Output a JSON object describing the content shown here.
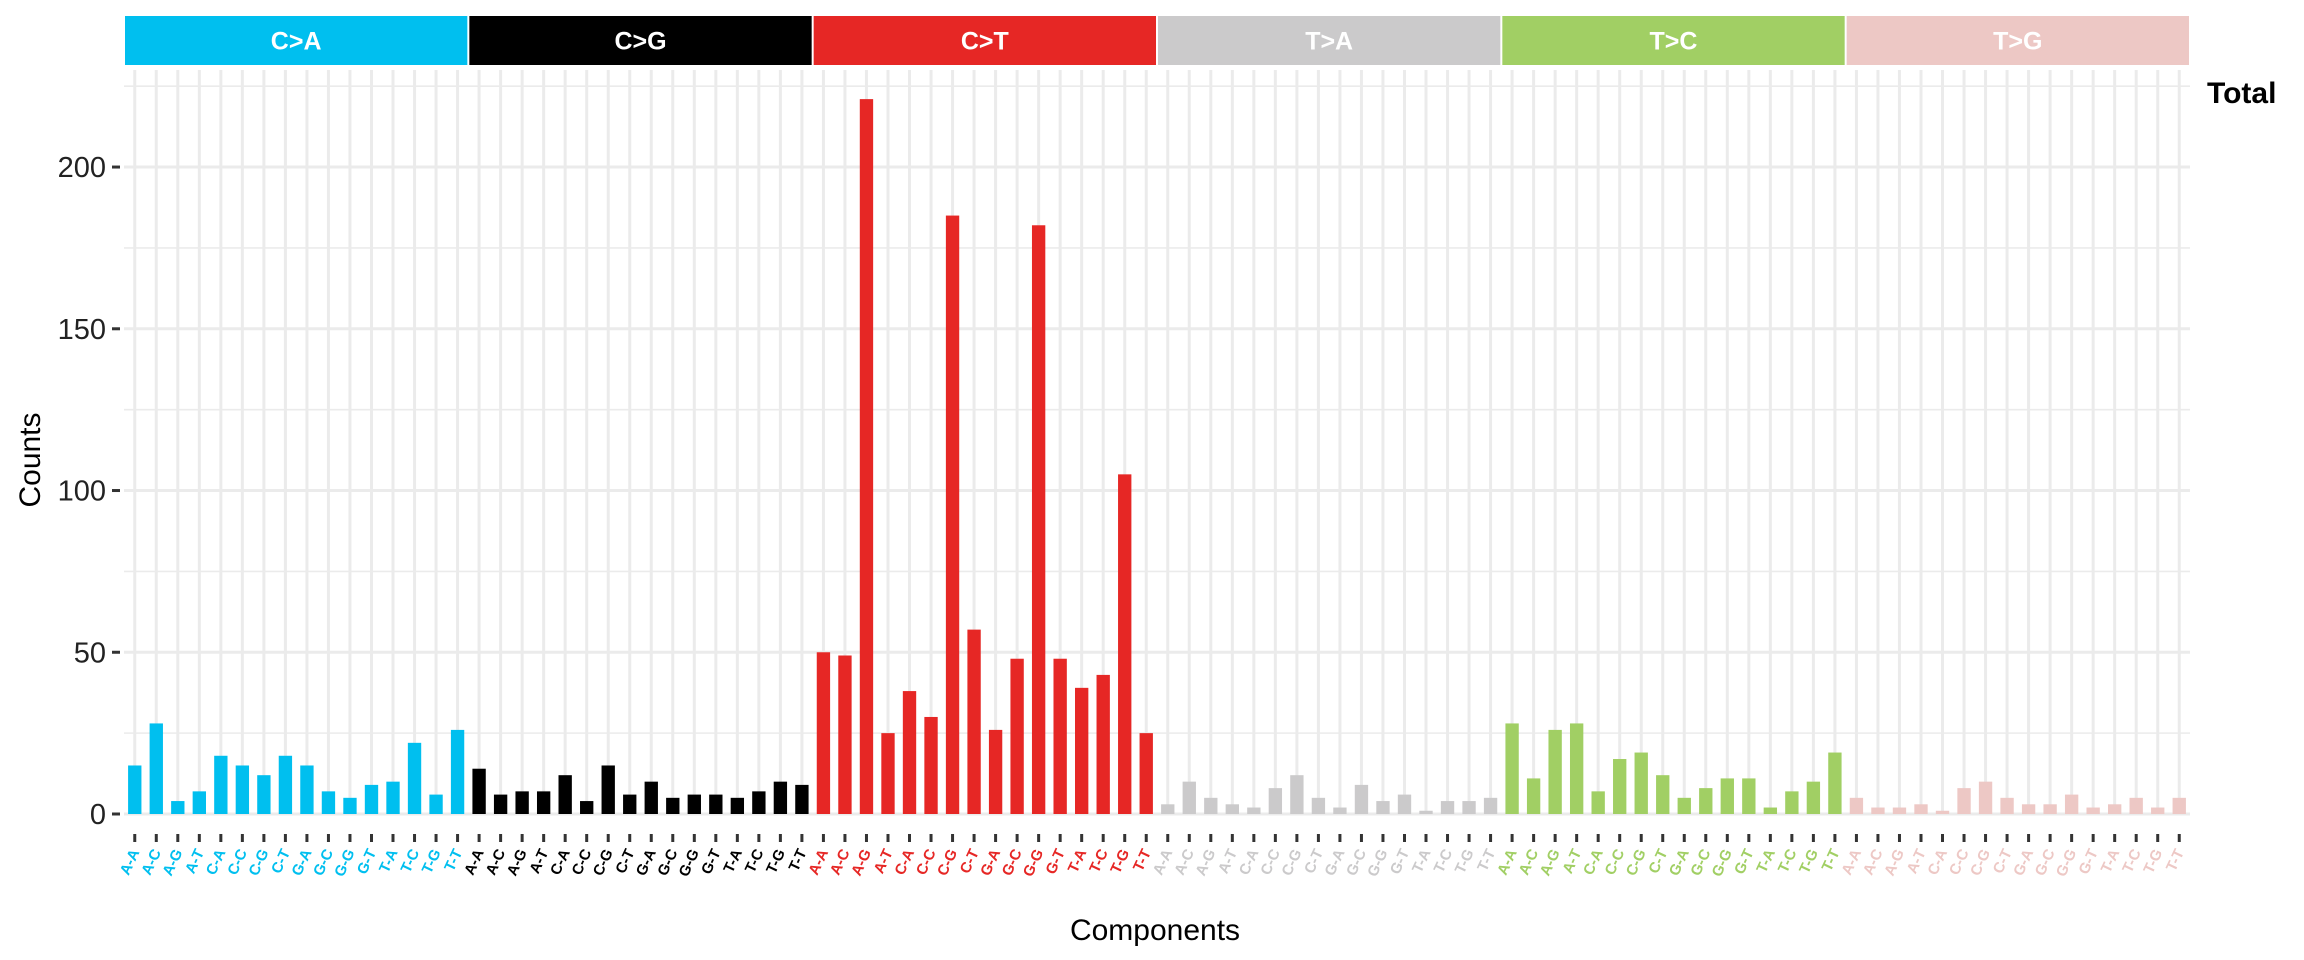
{
  "chart_data": {
    "type": "bar",
    "facet_label": "Total",
    "xlabel": "Components",
    "ylabel": "Counts",
    "ylim": [
      0,
      230
    ],
    "yticks": [
      0,
      50,
      100,
      150,
      200
    ],
    "grid": true,
    "contexts": [
      "A-A",
      "A-C",
      "A-G",
      "A-T",
      "C-A",
      "C-C",
      "C-G",
      "C-T",
      "G-A",
      "G-C",
      "G-G",
      "G-T",
      "T-A",
      "T-C",
      "T-G",
      "T-T"
    ],
    "groups": [
      {
        "label": "C>A",
        "color": "#00BFEF",
        "text_color": "#ffffff",
        "values": [
          15,
          28,
          4,
          7,
          18,
          15,
          12,
          18,
          15,
          7,
          5,
          9,
          10,
          22,
          6,
          26
        ]
      },
      {
        "label": "C>G",
        "color": "#000000",
        "text_color": "#ffffff",
        "values": [
          14,
          6,
          7,
          7,
          12,
          4,
          15,
          6,
          10,
          5,
          6,
          6,
          5,
          7,
          10,
          9
        ]
      },
      {
        "label": "C>T",
        "color": "#E62725",
        "text_color": "#ffffff",
        "values": [
          50,
          49,
          221,
          25,
          38,
          30,
          185,
          57,
          26,
          48,
          182,
          48,
          39,
          43,
          105,
          25
        ]
      },
      {
        "label": "T>A",
        "color": "#CBCACB",
        "text_color": "#ffffff",
        "values": [
          3,
          10,
          5,
          3,
          2,
          8,
          12,
          5,
          2,
          9,
          4,
          6,
          1,
          4,
          4,
          5
        ]
      },
      {
        "label": "T>C",
        "color": "#A1CF64",
        "text_color": "#ffffff",
        "values": [
          28,
          11,
          26,
          28,
          7,
          17,
          19,
          12,
          5,
          8,
          11,
          11,
          2,
          7,
          10,
          19
        ]
      },
      {
        "label": "T>G",
        "color": "#EDC8C5",
        "text_color": "#ffffff",
        "values": [
          5,
          2,
          2,
          3,
          1,
          8,
          10,
          5,
          3,
          3,
          6,
          2,
          3,
          5,
          2,
          5
        ]
      }
    ]
  }
}
